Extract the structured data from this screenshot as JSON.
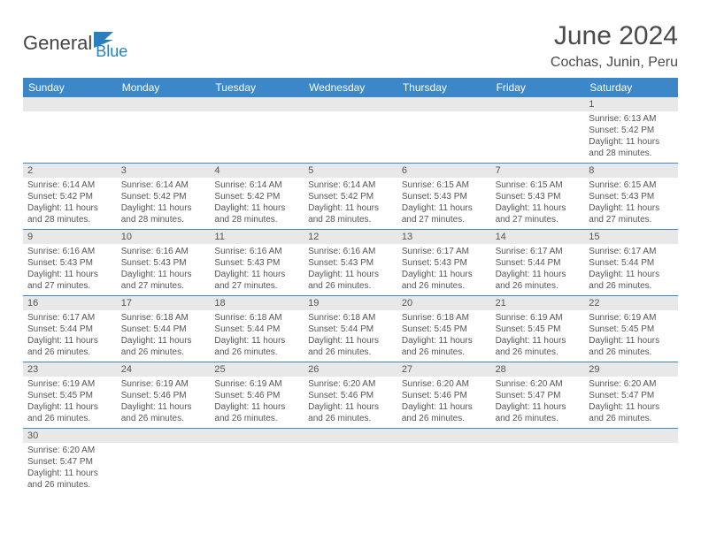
{
  "logo": {
    "text1": "General",
    "text2": "Blue",
    "flag_color": "#2a7fbf"
  },
  "title": "June 2024",
  "location": "Cochas, Junin, Peru",
  "colors": {
    "header_bg": "#3b87c8",
    "header_text": "#ffffff",
    "daynum_bg": "#e8e8e8",
    "text": "#555555",
    "row_border": "#3b87c8"
  },
  "fonts": {
    "title_size": 30,
    "location_size": 16,
    "dayheader_size": 12,
    "daynum_size": 11,
    "info_size": 10
  },
  "day_headers": [
    "Sunday",
    "Monday",
    "Tuesday",
    "Wednesday",
    "Thursday",
    "Friday",
    "Saturday"
  ],
  "weeks": [
    [
      {
        "n": "",
        "sr": "",
        "ss": "",
        "dl": ""
      },
      {
        "n": "",
        "sr": "",
        "ss": "",
        "dl": ""
      },
      {
        "n": "",
        "sr": "",
        "ss": "",
        "dl": ""
      },
      {
        "n": "",
        "sr": "",
        "ss": "",
        "dl": ""
      },
      {
        "n": "",
        "sr": "",
        "ss": "",
        "dl": ""
      },
      {
        "n": "",
        "sr": "",
        "ss": "",
        "dl": ""
      },
      {
        "n": "1",
        "sr": "Sunrise: 6:13 AM",
        "ss": "Sunset: 5:42 PM",
        "dl": "Daylight: 11 hours and 28 minutes."
      }
    ],
    [
      {
        "n": "2",
        "sr": "Sunrise: 6:14 AM",
        "ss": "Sunset: 5:42 PM",
        "dl": "Daylight: 11 hours and 28 minutes."
      },
      {
        "n": "3",
        "sr": "Sunrise: 6:14 AM",
        "ss": "Sunset: 5:42 PM",
        "dl": "Daylight: 11 hours and 28 minutes."
      },
      {
        "n": "4",
        "sr": "Sunrise: 6:14 AM",
        "ss": "Sunset: 5:42 PM",
        "dl": "Daylight: 11 hours and 28 minutes."
      },
      {
        "n": "5",
        "sr": "Sunrise: 6:14 AM",
        "ss": "Sunset: 5:42 PM",
        "dl": "Daylight: 11 hours and 28 minutes."
      },
      {
        "n": "6",
        "sr": "Sunrise: 6:15 AM",
        "ss": "Sunset: 5:43 PM",
        "dl": "Daylight: 11 hours and 27 minutes."
      },
      {
        "n": "7",
        "sr": "Sunrise: 6:15 AM",
        "ss": "Sunset: 5:43 PM",
        "dl": "Daylight: 11 hours and 27 minutes."
      },
      {
        "n": "8",
        "sr": "Sunrise: 6:15 AM",
        "ss": "Sunset: 5:43 PM",
        "dl": "Daylight: 11 hours and 27 minutes."
      }
    ],
    [
      {
        "n": "9",
        "sr": "Sunrise: 6:16 AM",
        "ss": "Sunset: 5:43 PM",
        "dl": "Daylight: 11 hours and 27 minutes."
      },
      {
        "n": "10",
        "sr": "Sunrise: 6:16 AM",
        "ss": "Sunset: 5:43 PM",
        "dl": "Daylight: 11 hours and 27 minutes."
      },
      {
        "n": "11",
        "sr": "Sunrise: 6:16 AM",
        "ss": "Sunset: 5:43 PM",
        "dl": "Daylight: 11 hours and 27 minutes."
      },
      {
        "n": "12",
        "sr": "Sunrise: 6:16 AM",
        "ss": "Sunset: 5:43 PM",
        "dl": "Daylight: 11 hours and 26 minutes."
      },
      {
        "n": "13",
        "sr": "Sunrise: 6:17 AM",
        "ss": "Sunset: 5:43 PM",
        "dl": "Daylight: 11 hours and 26 minutes."
      },
      {
        "n": "14",
        "sr": "Sunrise: 6:17 AM",
        "ss": "Sunset: 5:44 PM",
        "dl": "Daylight: 11 hours and 26 minutes."
      },
      {
        "n": "15",
        "sr": "Sunrise: 6:17 AM",
        "ss": "Sunset: 5:44 PM",
        "dl": "Daylight: 11 hours and 26 minutes."
      }
    ],
    [
      {
        "n": "16",
        "sr": "Sunrise: 6:17 AM",
        "ss": "Sunset: 5:44 PM",
        "dl": "Daylight: 11 hours and 26 minutes."
      },
      {
        "n": "17",
        "sr": "Sunrise: 6:18 AM",
        "ss": "Sunset: 5:44 PM",
        "dl": "Daylight: 11 hours and 26 minutes."
      },
      {
        "n": "18",
        "sr": "Sunrise: 6:18 AM",
        "ss": "Sunset: 5:44 PM",
        "dl": "Daylight: 11 hours and 26 minutes."
      },
      {
        "n": "19",
        "sr": "Sunrise: 6:18 AM",
        "ss": "Sunset: 5:44 PM",
        "dl": "Daylight: 11 hours and 26 minutes."
      },
      {
        "n": "20",
        "sr": "Sunrise: 6:18 AM",
        "ss": "Sunset: 5:45 PM",
        "dl": "Daylight: 11 hours and 26 minutes."
      },
      {
        "n": "21",
        "sr": "Sunrise: 6:19 AM",
        "ss": "Sunset: 5:45 PM",
        "dl": "Daylight: 11 hours and 26 minutes."
      },
      {
        "n": "22",
        "sr": "Sunrise: 6:19 AM",
        "ss": "Sunset: 5:45 PM",
        "dl": "Daylight: 11 hours and 26 minutes."
      }
    ],
    [
      {
        "n": "23",
        "sr": "Sunrise: 6:19 AM",
        "ss": "Sunset: 5:45 PM",
        "dl": "Daylight: 11 hours and 26 minutes."
      },
      {
        "n": "24",
        "sr": "Sunrise: 6:19 AM",
        "ss": "Sunset: 5:46 PM",
        "dl": "Daylight: 11 hours and 26 minutes."
      },
      {
        "n": "25",
        "sr": "Sunrise: 6:19 AM",
        "ss": "Sunset: 5:46 PM",
        "dl": "Daylight: 11 hours and 26 minutes."
      },
      {
        "n": "26",
        "sr": "Sunrise: 6:20 AM",
        "ss": "Sunset: 5:46 PM",
        "dl": "Daylight: 11 hours and 26 minutes."
      },
      {
        "n": "27",
        "sr": "Sunrise: 6:20 AM",
        "ss": "Sunset: 5:46 PM",
        "dl": "Daylight: 11 hours and 26 minutes."
      },
      {
        "n": "28",
        "sr": "Sunrise: 6:20 AM",
        "ss": "Sunset: 5:47 PM",
        "dl": "Daylight: 11 hours and 26 minutes."
      },
      {
        "n": "29",
        "sr": "Sunrise: 6:20 AM",
        "ss": "Sunset: 5:47 PM",
        "dl": "Daylight: 11 hours and 26 minutes."
      }
    ],
    [
      {
        "n": "30",
        "sr": "Sunrise: 6:20 AM",
        "ss": "Sunset: 5:47 PM",
        "dl": "Daylight: 11 hours and 26 minutes."
      },
      {
        "n": "",
        "sr": "",
        "ss": "",
        "dl": ""
      },
      {
        "n": "",
        "sr": "",
        "ss": "",
        "dl": ""
      },
      {
        "n": "",
        "sr": "",
        "ss": "",
        "dl": ""
      },
      {
        "n": "",
        "sr": "",
        "ss": "",
        "dl": ""
      },
      {
        "n": "",
        "sr": "",
        "ss": "",
        "dl": ""
      },
      {
        "n": "",
        "sr": "",
        "ss": "",
        "dl": ""
      }
    ]
  ]
}
